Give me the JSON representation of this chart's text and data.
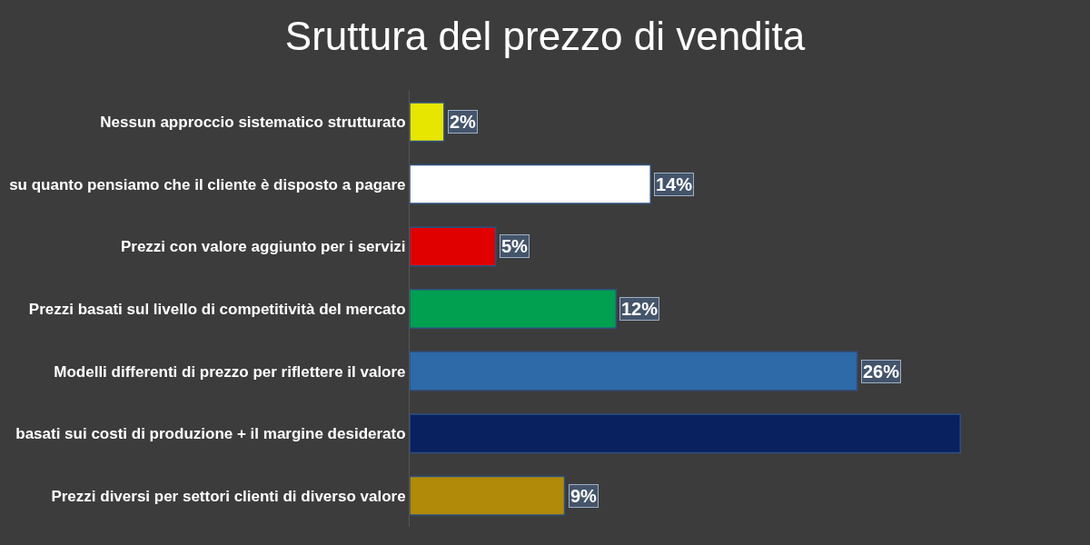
{
  "chart_data": {
    "type": "bar",
    "orientation": "horizontal",
    "title": "Sruttura del prezzo di vendita",
    "categories": [
      "Nessun approccio sistematico strutturato",
      "su quanto pensiamo che il cliente è disposto a pagare",
      "Prezzi con valore aggiunto per i servizi",
      "Prezzi basati sul livello di competitività del mercato",
      "Modelli differenti di prezzo per riflettere il valore",
      "basati sui costi di produzione + il margine desiderato",
      "Prezzi diversi per settori clienti di diverso valore"
    ],
    "values": [
      2,
      14,
      5,
      12,
      26,
      32,
      9
    ],
    "colors": [
      "#e6e600",
      "#ffffff",
      "#e00000",
      "#00a050",
      "#2e6aa8",
      "#0a2160",
      "#b08a08"
    ],
    "value_labels": [
      "2%",
      "14%",
      "5%",
      "12%",
      "26%",
      null,
      "9%"
    ],
    "legend": false
  }
}
